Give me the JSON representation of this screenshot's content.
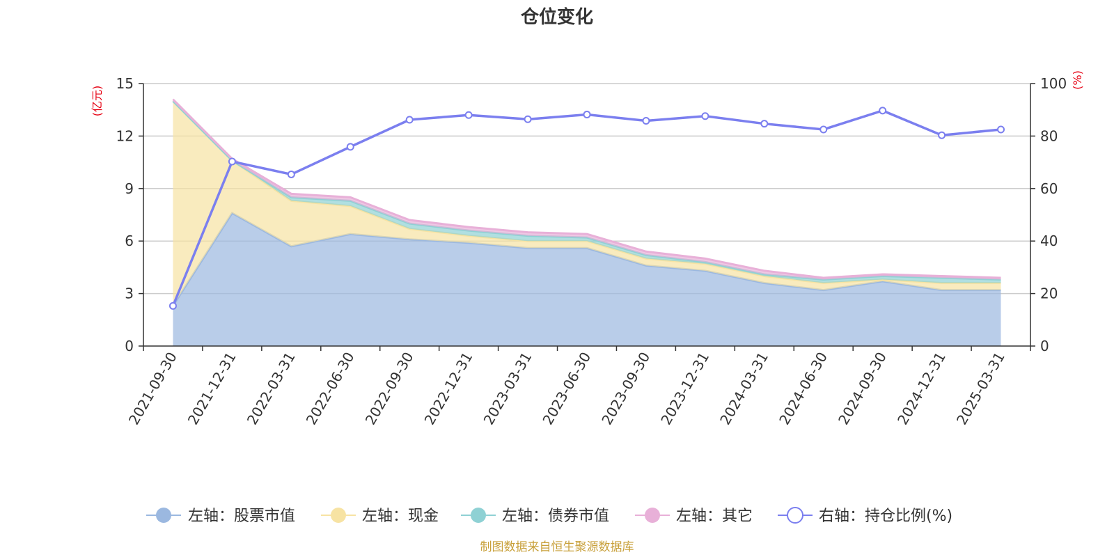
{
  "chart_data": {
    "type": "area",
    "title": "仓位变化",
    "left_axis_unit": "(亿元)",
    "right_axis_unit": "(%)",
    "left_ylim": [
      0,
      15
    ],
    "left_yticks": [
      "0",
      "3",
      "6",
      "9",
      "12",
      "15"
    ],
    "right_ylim": [
      0,
      100
    ],
    "right_yticks": [
      "0",
      "20",
      "40",
      "60",
      "80",
      "100"
    ],
    "grid": true,
    "legend_position": "bottom",
    "categories": [
      "2021-09-30",
      "2021-12-31",
      "2022-03-31",
      "2022-06-30",
      "2022-09-30",
      "2022-12-31",
      "2023-03-31",
      "2023-06-30",
      "2023-09-30",
      "2023-12-31",
      "2024-03-31",
      "2024-06-30",
      "2024-09-30",
      "2024-12-31",
      "2025-03-31"
    ],
    "series": [
      {
        "name": "左轴：股票市值",
        "axis": "left",
        "kind": "stacked-area",
        "color": "#9bb8e0",
        "values": [
          2.3,
          7.6,
          5.7,
          6.4,
          6.1,
          5.9,
          5.6,
          5.6,
          4.6,
          4.3,
          3.6,
          3.2,
          3.7,
          3.2,
          3.2
        ]
      },
      {
        "name": "左轴：现金",
        "axis": "left",
        "kind": "stacked-area",
        "color": "#f7e3a3",
        "values": [
          11.7,
          3.0,
          2.6,
          1.6,
          0.6,
          0.4,
          0.4,
          0.4,
          0.4,
          0.4,
          0.4,
          0.4,
          0.1,
          0.4,
          0.4
        ]
      },
      {
        "name": "左轴：债券市值",
        "axis": "left",
        "kind": "stacked-area",
        "color": "#8fd1d4",
        "values": [
          0.0,
          0.0,
          0.2,
          0.3,
          0.3,
          0.3,
          0.3,
          0.2,
          0.2,
          0.1,
          0.1,
          0.2,
          0.2,
          0.3,
          0.2
        ]
      },
      {
        "name": "左轴：其它",
        "axis": "left",
        "kind": "stacked-area",
        "color": "#e8b0d8",
        "values": [
          0.1,
          0.1,
          0.2,
          0.2,
          0.2,
          0.2,
          0.2,
          0.2,
          0.2,
          0.2,
          0.2,
          0.1,
          0.1,
          0.1,
          0.1
        ]
      },
      {
        "name": "右轴：持仓比例(%)",
        "axis": "right",
        "kind": "line",
        "color": "#7b7fef",
        "values": [
          15.3,
          70.3,
          65.4,
          75.9,
          86.2,
          88.0,
          86.4,
          88.2,
          85.8,
          87.6,
          84.7,
          82.5,
          89.7,
          80.3,
          82.5
        ]
      }
    ]
  },
  "footer": {
    "source_text": "制图数据来自恒生聚源数据库"
  }
}
